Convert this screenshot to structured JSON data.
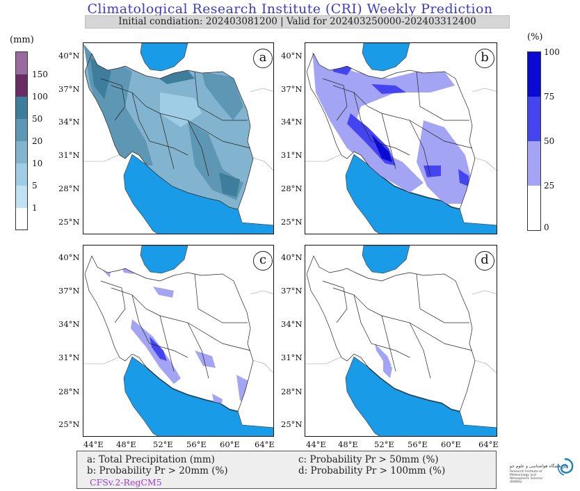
{
  "title": "Climatological Research Institute (CRI) Weekly Prediction",
  "subtitle": "Initial condiation: 202403081200 | Valid for 202403250000-202403312400",
  "legend_left": {
    "unit": "(mm)",
    "levels": [
      "150",
      "100",
      "50",
      "20",
      "10",
      "5",
      "1"
    ],
    "colors": [
      "#9a6a9e",
      "#6a2d63",
      "#3e7e9c",
      "#5e97b4",
      "#82b4cf",
      "#9fcde6",
      "#bfe3f3",
      "#ffffff"
    ]
  },
  "legend_right": {
    "unit": "(%)",
    "levels": [
      "100",
      "75",
      "50",
      "25",
      "0"
    ],
    "colors": [
      "#0a0ad2",
      "#4444f0",
      "#a4a4f4",
      "#ffffff"
    ]
  },
  "panels": [
    {
      "label": "a",
      "type": "total-precipitation"
    },
    {
      "label": "b",
      "type": "probability-20mm"
    },
    {
      "label": "c",
      "type": "probability-50mm"
    },
    {
      "label": "d",
      "type": "probability-100mm"
    }
  ],
  "lat_labels": [
    "40°N",
    "37°N",
    "34°N",
    "31°N",
    "28°N",
    "25°N"
  ],
  "lon_labels": [
    "44°E",
    "48°E",
    "52°E",
    "56°E",
    "60°E",
    "64°E"
  ],
  "footer": {
    "a": "a: Total Precipitation (mm)",
    "b": "b: Probability Pr > 20mm (%)",
    "c": "c: Probability Pr > 50mm (%)",
    "d": "d: Probability Pr > 100mm (%)",
    "model": "CFSv.2-RegCM5"
  },
  "logo": {
    "line1": "پژوهشگاه هواشناسی و علوم جو",
    "line2": "Research Institute of Meteorology and Atmospheric Science (RIMAS)"
  },
  "colors": {
    "sea": "#1a9be8",
    "title": "#3b3bd4",
    "model": "#9b3bd6"
  }
}
